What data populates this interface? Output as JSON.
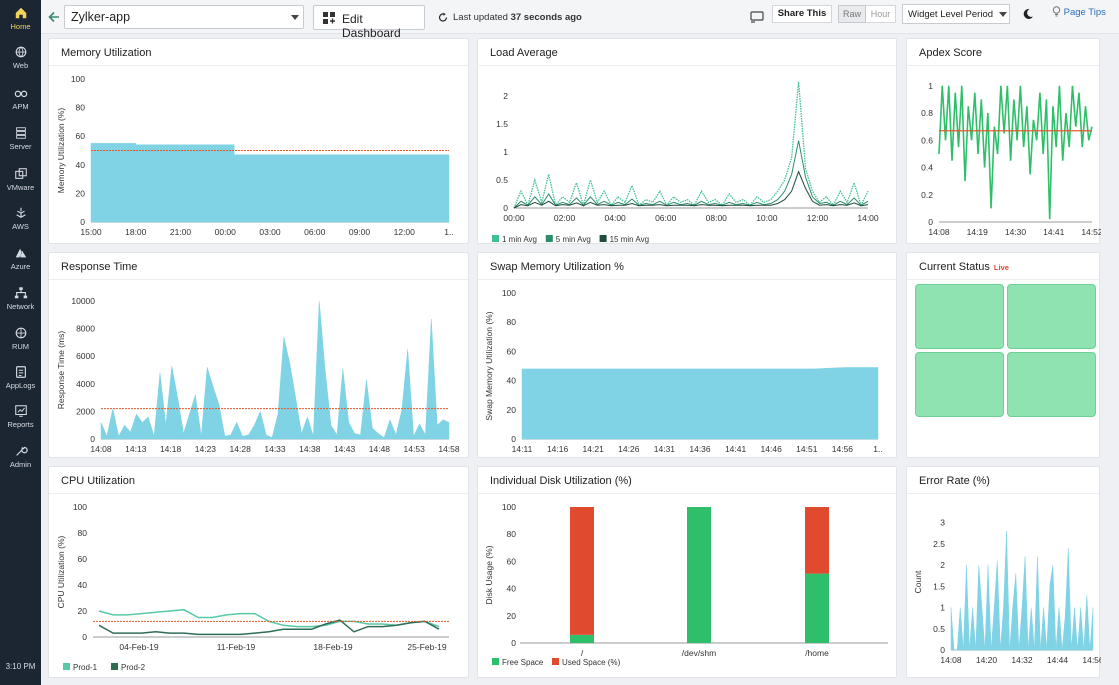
{
  "sidebar": {
    "items": [
      {
        "label": "Home",
        "icon": "home-icon",
        "active": true
      },
      {
        "label": "Web",
        "icon": "globe-icon"
      },
      {
        "label": "APM",
        "icon": "binoculars-icon"
      },
      {
        "label": "Server",
        "icon": "server-icon"
      },
      {
        "label": "VMware",
        "icon": "vmware-icon"
      },
      {
        "label": "AWS",
        "icon": "aws-icon"
      },
      {
        "label": "Azure",
        "icon": "azure-icon"
      },
      {
        "label": "Network",
        "icon": "network-icon"
      },
      {
        "label": "RUM",
        "icon": "rum-icon"
      },
      {
        "label": "AppLogs",
        "icon": "applogs-icon"
      },
      {
        "label": "Reports",
        "icon": "reports-icon"
      },
      {
        "label": "Admin",
        "icon": "admin-icon"
      }
    ],
    "time": "3:10 PM"
  },
  "topbar": {
    "app": "Zylker-app",
    "edit_label": "Edit Dashboard",
    "updated_prefix": "Last updated",
    "updated_value": "37 seconds ago",
    "share_label": "Share This",
    "raw_label": "Raw",
    "hour_label": "Hour",
    "period_label": "Widget Level Period",
    "tips_label": "Page Tips"
  },
  "colors": {
    "area": "#7fd3e5",
    "threshold": "#e05a2b",
    "green": "#2fbf6a",
    "red": "#e04a2f",
    "status": "#8ee3b0"
  },
  "widgets": {
    "memory": {
      "title": "Memory Utilization"
    },
    "load": {
      "title": "Load Average"
    },
    "apdex": {
      "title": "Apdex Score"
    },
    "response": {
      "title": "Response Time"
    },
    "swap": {
      "title": "Swap Memory Utilization %"
    },
    "status": {
      "title": "Current Status",
      "live": "Live"
    },
    "cpu": {
      "title": "CPU Utilization"
    },
    "disk": {
      "title": "Individual Disk Utilization (%)"
    },
    "error": {
      "title": "Error Rate (%)"
    }
  },
  "chart_data": [
    {
      "id": "memory",
      "type": "area",
      "ylabel": "Memory Utilization (%)",
      "ylim": [
        0,
        100
      ],
      "yticks": [
        0,
        20,
        40,
        60,
        80,
        100
      ],
      "xticks": [
        "15:00",
        "18:00",
        "21:00",
        "00:00",
        "03:00",
        "06:00",
        "09:00",
        "12:00",
        "1.."
      ],
      "x": [
        0,
        1,
        2,
        3,
        3.2,
        4,
        5,
        6,
        7,
        8
      ],
      "values": [
        55,
        54,
        54,
        54,
        47,
        47,
        47,
        47,
        47,
        47
      ],
      "threshold": 50
    },
    {
      "id": "load",
      "type": "line",
      "ylim": [
        0,
        2.3
      ],
      "yticks": [
        0,
        0.5,
        1,
        1.5,
        2
      ],
      "xticks": [
        "00:00",
        "02:00",
        "04:00",
        "06:00",
        "08:00",
        "10:00",
        "12:00",
        "14:00"
      ],
      "series": [
        {
          "name": "1 min Avg",
          "values": [
            0,
            0.3,
            0.05,
            0.5,
            0.1,
            0.6,
            0.05,
            0.2,
            0.1,
            0.45,
            0.05,
            0.5,
            0.1,
            0.3,
            0.05,
            0.2,
            0.1,
            0.4,
            0.05,
            0.15,
            0.1,
            0.3,
            0.05,
            0.2,
            0.1,
            0.15,
            0.05,
            0.3,
            0.1,
            0.15,
            0.05,
            0.25,
            0.1,
            0.15,
            0.05,
            0.2,
            0.1,
            0.15,
            0.3,
            0.5,
            0.9,
            2.25,
            0.7,
            0.3,
            0.1,
            0.2,
            0.05,
            0.3,
            0.1,
            0.45,
            0.05,
            0.3
          ]
        },
        {
          "name": "5 min Avg",
          "values": [
            0,
            0.12,
            0.05,
            0.2,
            0.06,
            0.25,
            0.05,
            0.1,
            0.06,
            0.18,
            0.05,
            0.2,
            0.06,
            0.12,
            0.05,
            0.1,
            0.06,
            0.16,
            0.05,
            0.08,
            0.06,
            0.12,
            0.05,
            0.1,
            0.06,
            0.08,
            0.05,
            0.12,
            0.06,
            0.08,
            0.05,
            0.1,
            0.06,
            0.08,
            0.05,
            0.1,
            0.06,
            0.08,
            0.15,
            0.3,
            0.6,
            1.2,
            0.55,
            0.2,
            0.08,
            0.1,
            0.05,
            0.12,
            0.06,
            0.18,
            0.05,
            0.12
          ]
        },
        {
          "name": "15 min Avg",
          "values": [
            0,
            0.06,
            0.04,
            0.1,
            0.05,
            0.12,
            0.04,
            0.06,
            0.05,
            0.09,
            0.04,
            0.1,
            0.05,
            0.06,
            0.04,
            0.05,
            0.05,
            0.08,
            0.04,
            0.05,
            0.05,
            0.06,
            0.04,
            0.05,
            0.05,
            0.05,
            0.04,
            0.06,
            0.05,
            0.05,
            0.04,
            0.05,
            0.05,
            0.05,
            0.04,
            0.05,
            0.05,
            0.05,
            0.08,
            0.15,
            0.3,
            0.65,
            0.35,
            0.12,
            0.05,
            0.06,
            0.04,
            0.06,
            0.05,
            0.09,
            0.04,
            0.06
          ]
        }
      ]
    },
    {
      "id": "apdex",
      "type": "line",
      "ylim": [
        0,
        1.05
      ],
      "yticks": [
        0,
        0.2,
        0.4,
        0.6,
        0.8,
        1
      ],
      "xticks": [
        "14:08",
        "14:19",
        "14:30",
        "14:41",
        "14:52"
      ],
      "values": [
        0.5,
        1,
        0.6,
        1,
        0.45,
        0.95,
        0.55,
        1,
        0.3,
        0.85,
        0.6,
        0.95,
        0.5,
        0.9,
        0.4,
        0.8,
        0.1,
        0.7,
        0.5,
        1,
        0.65,
        1,
        0.45,
        0.9,
        0.6,
        1,
        0.55,
        0.85,
        0.35,
        0.75,
        0.6,
        0.95,
        0.5,
        0.9,
        0.02,
        0.85,
        0.55,
        1,
        0.45,
        0.8,
        0.55,
        1,
        0.7,
        0.95,
        0.55,
        0.85,
        0.6,
        0.7
      ],
      "threshold": 0.67
    },
    {
      "id": "response",
      "type": "area",
      "ylabel": "Response Time (ms)",
      "ylim": [
        0,
        10000
      ],
      "yticks": [
        0,
        2000,
        4000,
        6000,
        8000,
        10000
      ],
      "xticks": [
        "14:08",
        "14:13",
        "14:18",
        "14:23",
        "14:28",
        "14:33",
        "14:38",
        "14:43",
        "14:48",
        "14:53",
        "14:58"
      ],
      "values": [
        1200,
        200,
        2200,
        200,
        1000,
        500,
        1800,
        1200,
        1600,
        200,
        4800,
        1000,
        5300,
        3000,
        400,
        1800,
        3200,
        200,
        5200,
        3800,
        2500,
        200,
        300,
        1200,
        200,
        300,
        1000,
        2000,
        300,
        100,
        1800,
        7400,
        5500,
        3000,
        400,
        1600,
        200,
        10000,
        5000,
        1000,
        300,
        5100,
        1200,
        400,
        300,
        4300,
        800,
        400,
        100,
        1400,
        300,
        2100,
        6500,
        200,
        1100,
        300,
        8700,
        1000,
        1400,
        1200
      ],
      "threshold": 2200
    },
    {
      "id": "swap",
      "type": "area",
      "ylabel": "Swap Memory Utilization (%)",
      "ylim": [
        0,
        100
      ],
      "yticks": [
        0,
        20,
        40,
        60,
        80,
        100
      ],
      "xticks": [
        "14:11",
        "14:16",
        "14:21",
        "14:26",
        "14:31",
        "14:36",
        "14:41",
        "14:46",
        "14:51",
        "14:56",
        "1.."
      ],
      "values": [
        48,
        48,
        48,
        48,
        48,
        48,
        48,
        48,
        48,
        48,
        49,
        49
      ]
    },
    {
      "id": "cpu",
      "type": "line",
      "ylabel": "CPU Utilization (%)",
      "ylim": [
        0,
        100
      ],
      "yticks": [
        0,
        20,
        40,
        60,
        80,
        100
      ],
      "xticks": [
        "04-Feb-19",
        "11-Feb-19",
        "18-Feb-19",
        "25-Feb-19"
      ],
      "series": [
        {
          "name": "Prod-1",
          "values": [
            20,
            17,
            17,
            18,
            19,
            20,
            21,
            15,
            15,
            17,
            18,
            18,
            12,
            9,
            8,
            8,
            9,
            12,
            12,
            10,
            10,
            9,
            11,
            12,
            8
          ]
        },
        {
          "name": "Prod-2",
          "values": [
            9,
            3,
            3,
            3,
            4,
            3,
            3,
            2,
            2,
            2,
            2,
            3,
            4,
            6,
            6,
            6,
            10,
            13,
            4,
            8,
            8,
            9,
            11,
            12,
            6
          ]
        }
      ],
      "threshold": 12
    },
    {
      "id": "disk",
      "type": "bar",
      "ylabel": "Disk Usage (%)",
      "ylim": [
        0,
        100
      ],
      "yticks": [
        0,
        20,
        40,
        60,
        80,
        100
      ],
      "categories": [
        "/",
        "/dev/shm",
        "/home"
      ],
      "series": [
        {
          "name": "Free Space",
          "values": [
            6,
            100,
            51
          ]
        },
        {
          "name": "Used Space (%)",
          "values": [
            94,
            0,
            49
          ]
        }
      ]
    },
    {
      "id": "error",
      "type": "area",
      "ylabel": "Count",
      "ylim": [
        0,
        3.2
      ],
      "yticks": [
        0,
        0.5,
        1,
        1.5,
        2,
        2.5,
        3
      ],
      "xticks": [
        "14:08",
        "14:20",
        "14:32",
        "14:44",
        "14:56"
      ],
      "values": [
        1,
        0,
        0,
        1,
        0,
        2,
        0,
        1,
        0,
        2,
        1,
        0,
        2,
        0,
        1,
        2.1,
        0,
        1,
        2.8,
        0,
        1,
        1.8,
        0,
        1,
        2.2,
        0,
        1,
        0,
        2.2,
        0,
        1,
        0,
        1.5,
        2,
        0,
        1,
        0,
        0.8,
        2.4,
        0,
        1,
        0,
        1,
        0,
        1.3,
        0,
        1
      ]
    }
  ]
}
